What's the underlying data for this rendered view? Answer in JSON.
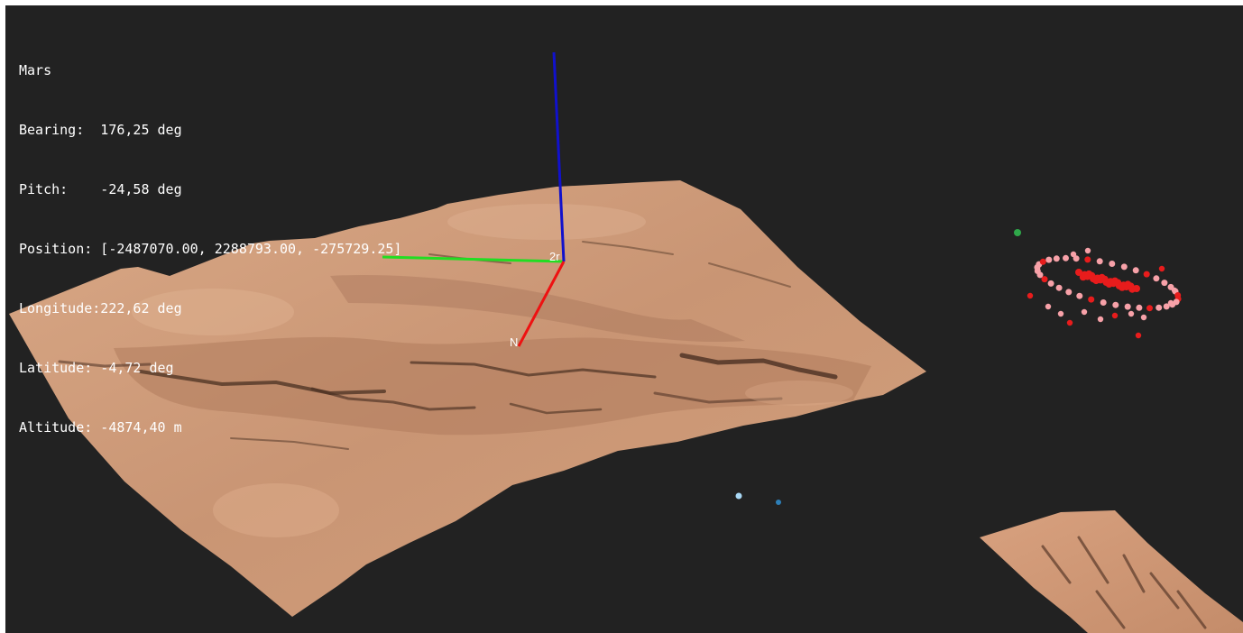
{
  "hud": {
    "body": "Mars",
    "bearing": "Bearing:  176,25 deg",
    "pitch": "Pitch:    -24,58 deg",
    "position": "Position: [-2487070.00, 2288793.00, -275729.25]",
    "longitude": "Longitude:222,62 deg",
    "latitude": "Latitude: -4,72 deg",
    "altitude": "Altitude: -4874,40 m"
  },
  "gizmo": {
    "origin_label": "2r",
    "north_label": "N",
    "x_axis_color": "#22dd22",
    "y_axis_color": "#1111cc",
    "z_axis_color": "#ee1111"
  },
  "colors": {
    "background": "#222222",
    "terrain_light": "#d6a07e",
    "terrain_mid": "#c08a66",
    "terrain_dark": "#5e4030",
    "point_red": "#e81c1c",
    "point_pink": "#f7a1a8",
    "point_green": "#2fa84a",
    "point_lightblue": "#a9d8f5",
    "point_blue": "#2d7fb8"
  }
}
